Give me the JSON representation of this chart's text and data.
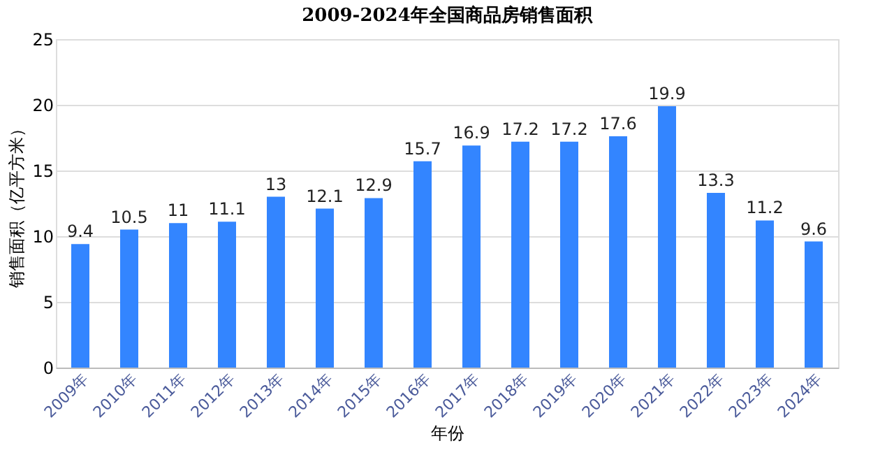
{
  "chart_data": {
    "type": "bar",
    "title": "2009-2024年全国商品房销售面积",
    "xlabel": "年份",
    "ylabel": "销售面积（亿平方米）",
    "categories": [
      "2009年",
      "2010年",
      "2011年",
      "2012年",
      "2013年",
      "2014年",
      "2015年",
      "2016年",
      "2017年",
      "2018年",
      "2019年",
      "2020年",
      "2021年",
      "2022年",
      "2023年",
      "2024年"
    ],
    "values": [
      9.4,
      10.5,
      11,
      11.1,
      13,
      12.1,
      12.9,
      15.7,
      16.9,
      17.2,
      17.2,
      17.6,
      19.9,
      13.3,
      11.2,
      9.6
    ],
    "color": "#3385ff",
    "ylim": [
      0,
      25
    ],
    "yticks": [
      0,
      5,
      10,
      15,
      20,
      25
    ],
    "grid": "y",
    "data_labels": true
  }
}
